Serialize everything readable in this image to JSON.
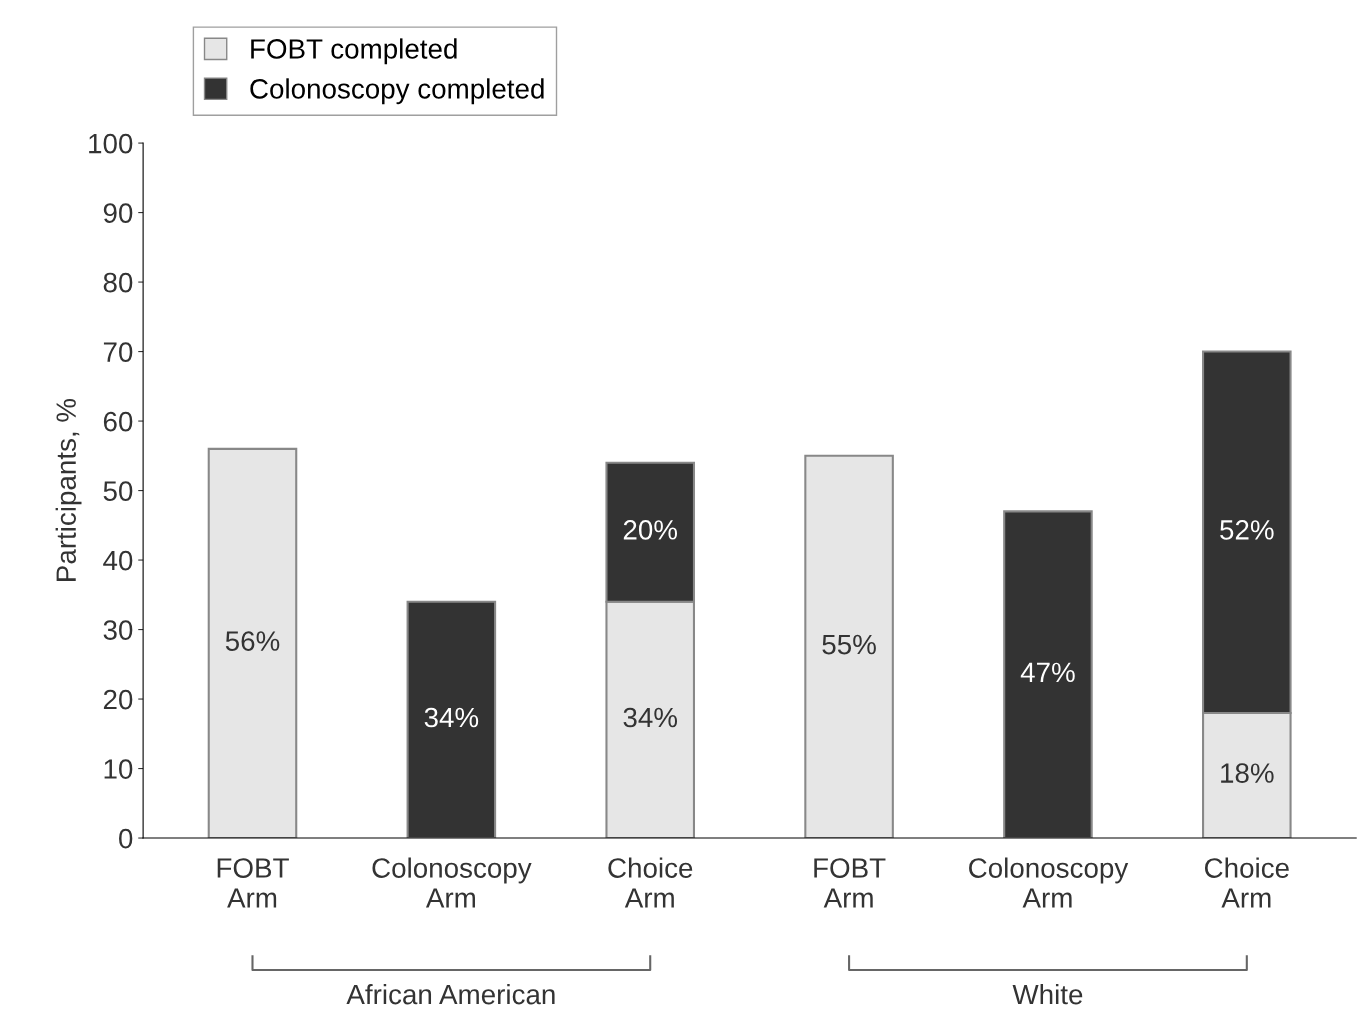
{
  "chart_data": {
    "type": "bar",
    "stacked": true,
    "ylabel": "Participants, %",
    "categories": [
      "FOBT\nArm",
      "Colonoscopy\nArm",
      "Choice\nArm",
      "FOBT\nArm",
      "Colonoscopy\nArm",
      "Choice\nArm"
    ],
    "series": [
      {
        "name": "FOBT completed",
        "color": "#e6e6e6",
        "values": [
          56,
          null,
          34,
          55,
          null,
          18
        ],
        "value_labels": [
          "56%",
          null,
          "34%",
          "55%",
          null,
          "18%"
        ]
      },
      {
        "name": "Colonoscopy completed",
        "color": "#333333",
        "values": [
          null,
          34,
          20,
          null,
          47,
          52
        ],
        "value_labels": [
          null,
          "34%",
          "20%",
          null,
          "47%",
          "52%"
        ]
      }
    ],
    "ylim": [
      0,
      100
    ],
    "yticks": [
      0,
      10,
      20,
      30,
      40,
      50,
      60,
      70,
      80,
      90,
      100
    ],
    "legend": "top left",
    "grid": false,
    "annotations": [
      "African American",
      "White"
    ]
  }
}
